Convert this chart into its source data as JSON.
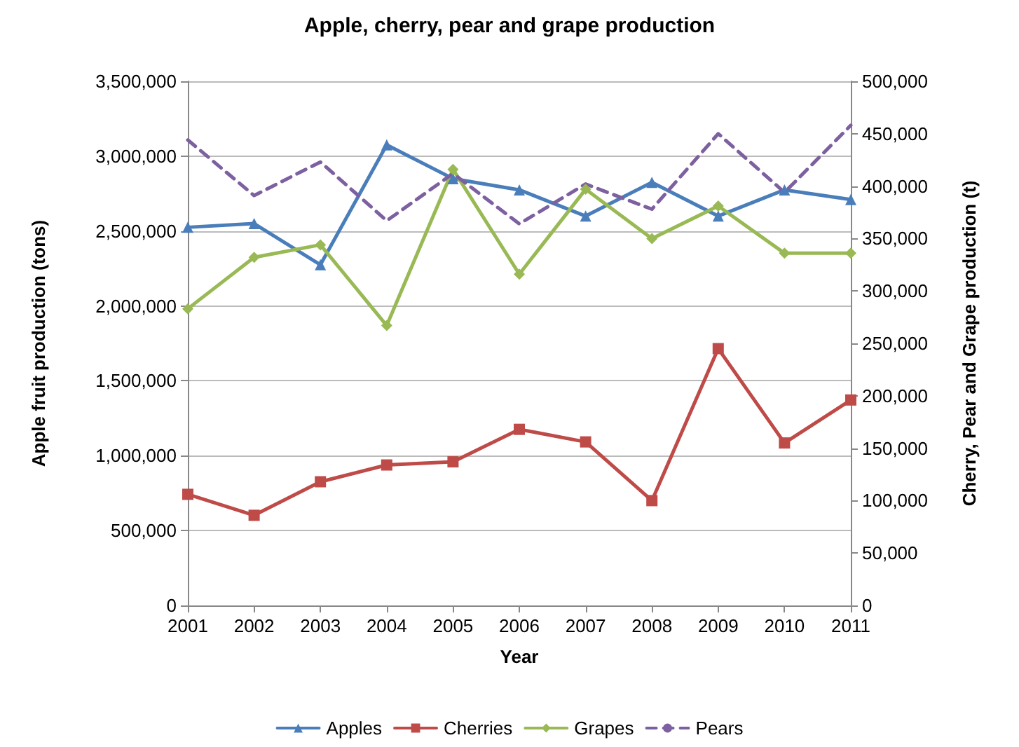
{
  "chart_data": {
    "type": "line",
    "title": "Apple, cherry, pear and grape production",
    "xlabel": "Year",
    "ylabel": "Apple fruit production (tons)",
    "y2label": "Cherry, Pear and Grape production (t)",
    "categories": [
      "2001",
      "2002",
      "2003",
      "2004",
      "2005",
      "2006",
      "2007",
      "2008",
      "2009",
      "2010",
      "2011"
    ],
    "series": [
      {
        "name": "Apples",
        "color": "#4a7ebb",
        "marker": "triangle",
        "line_style": "solid",
        "values": [
          2525000,
          2550000,
          2275000,
          3075000,
          2850000,
          2775000,
          2600000,
          2825000,
          2600000,
          2775000,
          2710000
        ]
      },
      {
        "name": "Cherries",
        "color": "#be4b48",
        "marker": "square",
        "line_style": "solid",
        "axis": "y2",
        "values": [
          106000,
          86000,
          118000,
          134000,
          137000,
          168000,
          156000,
          100000,
          245000,
          155000,
          196000
        ]
      },
      {
        "name": "Grapes",
        "color": "#98b954",
        "marker": "diamond",
        "line_style": "solid",
        "axis": "y2",
        "values": [
          283000,
          332000,
          344000,
          267000,
          416000,
          316000,
          397000,
          350000,
          381000,
          336000,
          336000
        ]
      },
      {
        "name": "Pears",
        "color": "#7d60a0",
        "marker": "none",
        "line_style": "dashed",
        "axis": "y2",
        "values": [
          444000,
          391000,
          423000,
          367000,
          412000,
          364000,
          402000,
          378000,
          450000,
          394000,
          458000
        ]
      }
    ],
    "ylim": [
      0,
      3500000
    ],
    "yticks": [
      {
        "value": 0,
        "label": "0"
      },
      {
        "value": 500000,
        "label": "500,000"
      },
      {
        "value": 1000000,
        "label": "1,000,000"
      },
      {
        "value": 1500000,
        "label": "1,500,000"
      },
      {
        "value": 2000000,
        "label": "2,000,000"
      },
      {
        "value": 2500000,
        "label": "2,500,000"
      },
      {
        "value": 3000000,
        "label": "3,000,000"
      },
      {
        "value": 3500000,
        "label": "3,500,000"
      }
    ],
    "y2lim": [
      0,
      500000
    ],
    "y2ticks": [
      {
        "value": 0,
        "label": "0"
      },
      {
        "value": 50000,
        "label": "50,000"
      },
      {
        "value": 100000,
        "label": "100,000"
      },
      {
        "value": 150000,
        "label": "150,000"
      },
      {
        "value": 200000,
        "label": "200,000"
      },
      {
        "value": 250000,
        "label": "250,000"
      },
      {
        "value": 300000,
        "label": "300,000"
      },
      {
        "value": 350000,
        "label": "350,000"
      },
      {
        "value": 400000,
        "label": "400,000"
      },
      {
        "value": 450000,
        "label": "450,000"
      },
      {
        "value": 500000,
        "label": "500,000"
      }
    ],
    "grid": "y",
    "legend": "bottom"
  }
}
